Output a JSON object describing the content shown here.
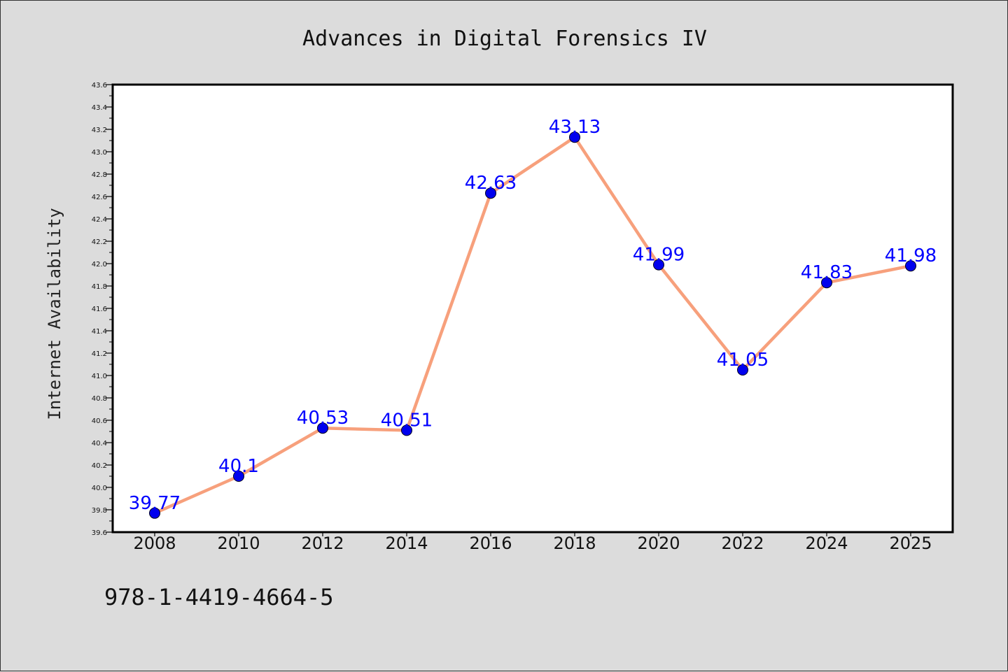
{
  "isbn": "978-1-4419-4664-5",
  "colors": {
    "background": "#dcdcdc",
    "plot_background": "#ffffff",
    "line": "#f7a07c",
    "marker": "#0000ee",
    "data_label": "#0000ff"
  },
  "chart_data": {
    "type": "line",
    "title": "Advances in Digital Forensics IV",
    "xlabel": "",
    "ylabel": "Internet Availability",
    "categories": [
      "2008",
      "2010",
      "2012",
      "2014",
      "2016",
      "2018",
      "2020",
      "2022",
      "2024",
      "2025"
    ],
    "series": [
      {
        "values": [
          39.77,
          40.1,
          40.53,
          40.51,
          42.63,
          43.13,
          41.99,
          41.05,
          41.83,
          41.98
        ],
        "labels": [
          "39.77",
          "40.1",
          "40.53",
          "40.51",
          "42.63",
          "43.13",
          "41.99",
          "41.05",
          "41.83",
          "41.98"
        ]
      }
    ],
    "ylim": [
      39.6,
      43.6
    ],
    "yticks": [
      "39.6",
      "39.8",
      "40.0",
      "40.2",
      "40.4",
      "40.6",
      "40.8",
      "41.0",
      "41.2",
      "41.4",
      "41.6",
      "41.8",
      "42.0",
      "42.2",
      "42.4",
      "42.6",
      "42.8",
      "43.0",
      "43.2",
      "43.4",
      "43.6"
    ],
    "grid": false,
    "legend": "none"
  }
}
